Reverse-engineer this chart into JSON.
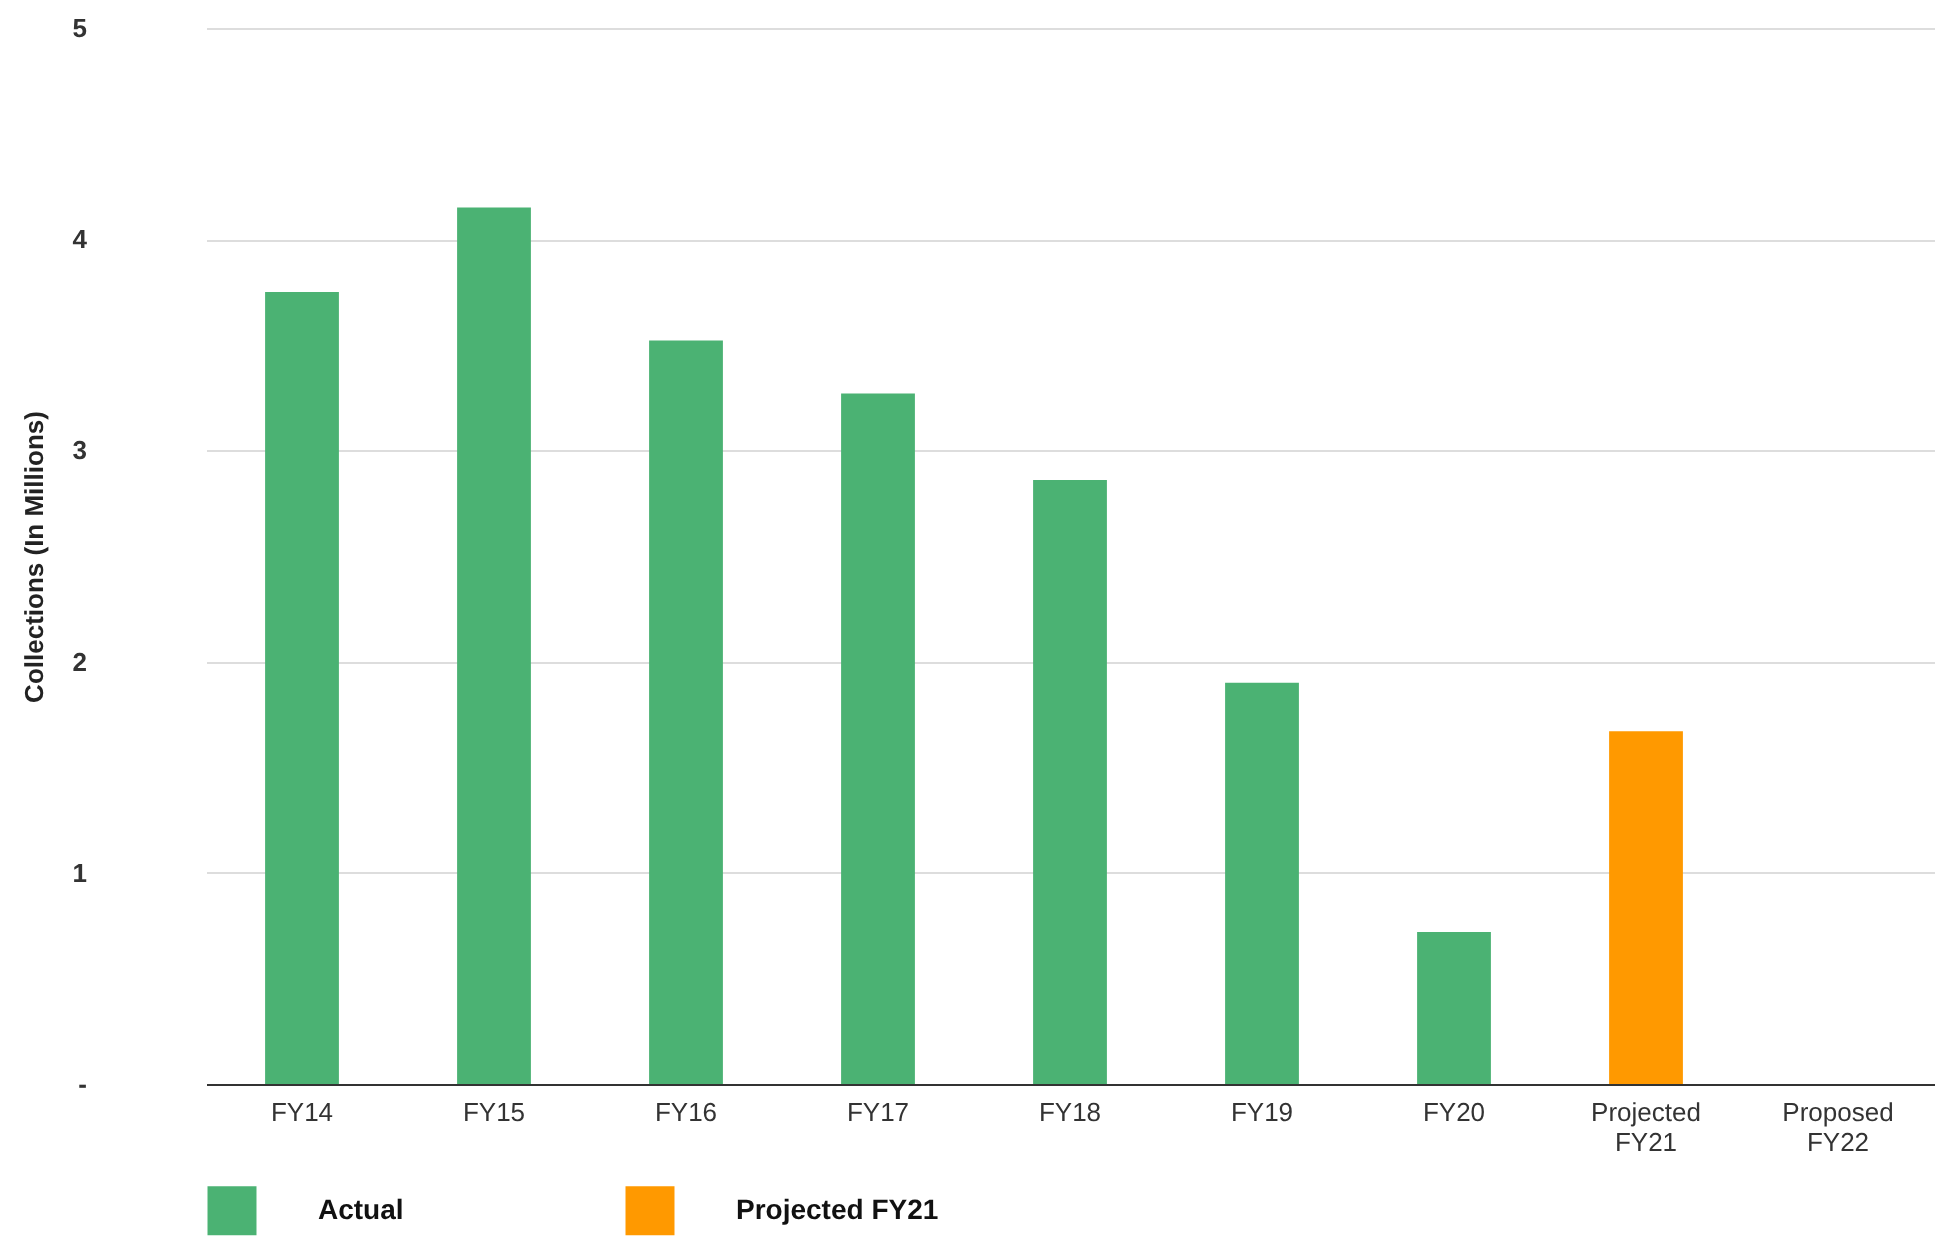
{
  "chart_data": {
    "type": "bar",
    "ylabel": "Collections (In Millions)",
    "categories": [
      "FY14",
      "FY15",
      "FY16",
      "FY17",
      "FY18",
      "FY19",
      "FY20",
      "Projected FY21",
      "Proposed FY22"
    ],
    "series": [
      {
        "name": "Actual",
        "color": "#4bb273",
        "values": [
          3.75,
          4.15,
          3.52,
          3.27,
          2.86,
          1.9,
          0.72,
          null,
          null
        ]
      },
      {
        "name": "Projected FY21",
        "color": "#ff9900",
        "values": [
          null,
          null,
          null,
          null,
          null,
          null,
          null,
          1.67,
          null
        ]
      }
    ],
    "ylim": [
      0,
      5
    ],
    "yticks": [
      {
        "value": 0,
        "label": "-"
      },
      1,
      2,
      3,
      4,
      5
    ],
    "grid": "y",
    "legend": "bottom"
  }
}
